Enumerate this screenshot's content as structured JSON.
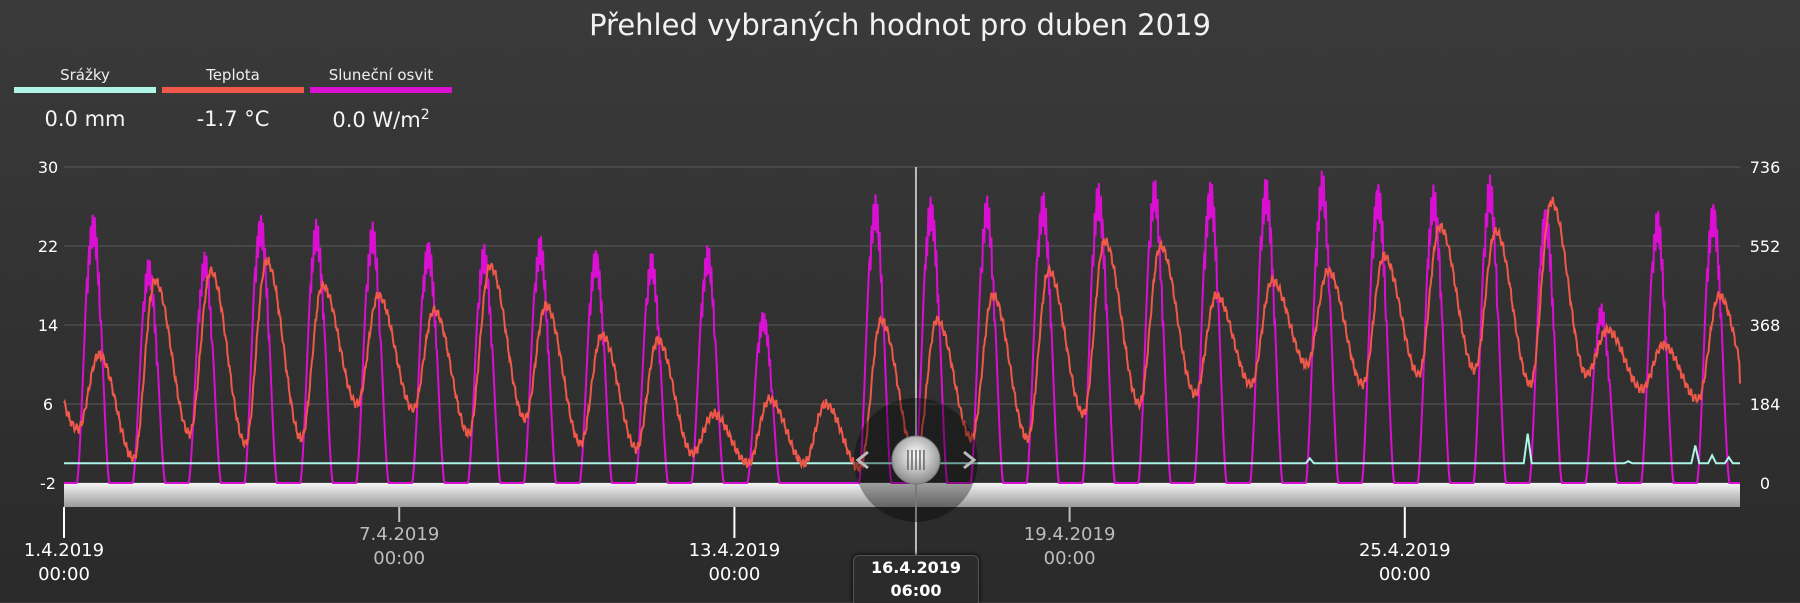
{
  "title": "Přehled vybraných hodnot pro duben 2019",
  "legend": [
    {
      "name": "Srážky",
      "value": "0.0 mm",
      "color": "#aef5e8"
    },
    {
      "name": "Teplota",
      "value": "-1.7 °C",
      "color": "#f0584a"
    },
    {
      "name": "Sluneční osvit",
      "value": "0.0 W/m",
      "sup": "2",
      "color": "#d90fd1"
    }
  ],
  "cursor": {
    "date": "16.4.2019",
    "time": "06:00"
  },
  "chart_data": {
    "type": "line",
    "x_range": [
      "1.4.2019 00:00",
      "1.5.2019 00:00"
    ],
    "left_axis": {
      "ticks": [
        "30",
        "22",
        "14",
        "6",
        "-2"
      ],
      "ylim": [
        -2,
        30
      ]
    },
    "right_axis": {
      "ticks": [
        "736",
        "552",
        "368",
        "184",
        "0"
      ],
      "ylim": [
        0,
        736
      ]
    },
    "x_ticks": [
      {
        "date": "1.4.2019",
        "time": "00:00",
        "day": 0,
        "major": true
      },
      {
        "date": "7.4.2019",
        "time": "00:00",
        "day": 6,
        "major": false
      },
      {
        "date": "13.4.2019",
        "time": "00:00",
        "day": 12,
        "major": true
      },
      {
        "date": "19.4.2019",
        "time": "00:00",
        "day": 18,
        "major": false
      },
      {
        "date": "25.4.2019",
        "time": "00:00",
        "day": 24,
        "major": true
      }
    ],
    "cursor_day": 15.25,
    "series": [
      {
        "name": "Teplota",
        "unit": "°C",
        "axis": "left",
        "color": "#f0584a",
        "daily_min": [
          3.5,
          0.5,
          3.0,
          2.0,
          2.5,
          6.0,
          5.5,
          3.0,
          4.5,
          2.0,
          1.5,
          1.0,
          0.0,
          0.0,
          -0.5,
          0.5,
          2.5,
          2.5,
          5.0,
          6.0,
          7.0,
          8.0,
          10.0,
          8.0,
          9.0,
          9.5,
          8.0,
          9.0,
          7.5,
          6.5
        ],
        "daily_max": [
          11.0,
          18.5,
          19.5,
          20.5,
          18.0,
          17.0,
          15.5,
          20.0,
          16.0,
          13.0,
          12.5,
          5.0,
          6.5,
          6.0,
          14.5,
          14.5,
          17.0,
          19.5,
          22.5,
          22.0,
          17.0,
          18.5,
          19.5,
          21.0,
          24.0,
          23.5,
          26.5,
          13.5,
          12.0,
          17.0
        ]
      },
      {
        "name": "Sluneční osvit",
        "unit": "W/m2",
        "axis": "right",
        "color": "#d90fd1",
        "daily_max": [
          640,
          530,
          540,
          640,
          620,
          610,
          580,
          560,
          580,
          560,
          540,
          560,
          410,
          0,
          680,
          680,
          670,
          690,
          710,
          710,
          720,
          720,
          730,
          715,
          700,
          720,
          660,
          420,
          640,
          670
        ]
      },
      {
        "name": "Srážky",
        "unit": "mm",
        "axis": "left",
        "color": "#aef5e8",
        "events": [
          {
            "day": 22.3,
            "value": 0.5
          },
          {
            "day": 26.2,
            "value": 3.0
          },
          {
            "day": 28.0,
            "value": 0.2
          },
          {
            "day": 29.2,
            "value": 1.8
          },
          {
            "day": 29.5,
            "value": 0.8
          },
          {
            "day": 29.8,
            "value": 0.6
          }
        ]
      }
    ]
  }
}
